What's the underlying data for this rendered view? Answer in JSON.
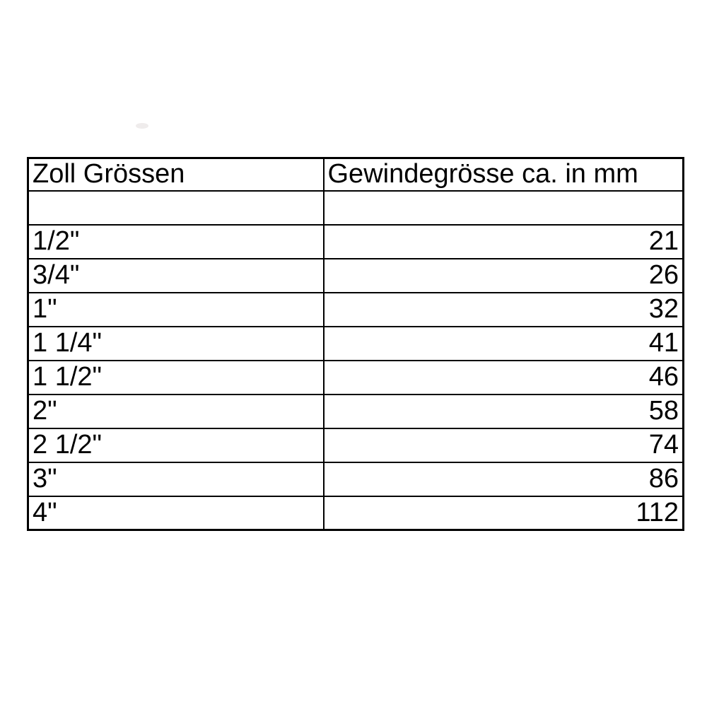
{
  "page": {
    "background_color": "#ffffff",
    "border_color": "#000000",
    "text_color": "#000000"
  },
  "table": {
    "col_headers": {
      "zoll": "Zoll Grössen",
      "mm": "Gewindegrösse ca. in mm"
    },
    "rows": [
      {
        "zoll": "1/2\"",
        "mm": "21"
      },
      {
        "zoll": "3/4\"",
        "mm": "26"
      },
      {
        "zoll": "1\"",
        "mm": "32"
      },
      {
        "zoll": "1 1/4\"",
        "mm": "41"
      },
      {
        "zoll": "1 1/2\"",
        "mm": "46"
      },
      {
        "zoll": "2\"",
        "mm": "58"
      },
      {
        "zoll": "2 1/2\"",
        "mm": "74"
      },
      {
        "zoll": "3\"",
        "mm": "86"
      },
      {
        "zoll": "4\"",
        "mm": "112"
      }
    ]
  }
}
